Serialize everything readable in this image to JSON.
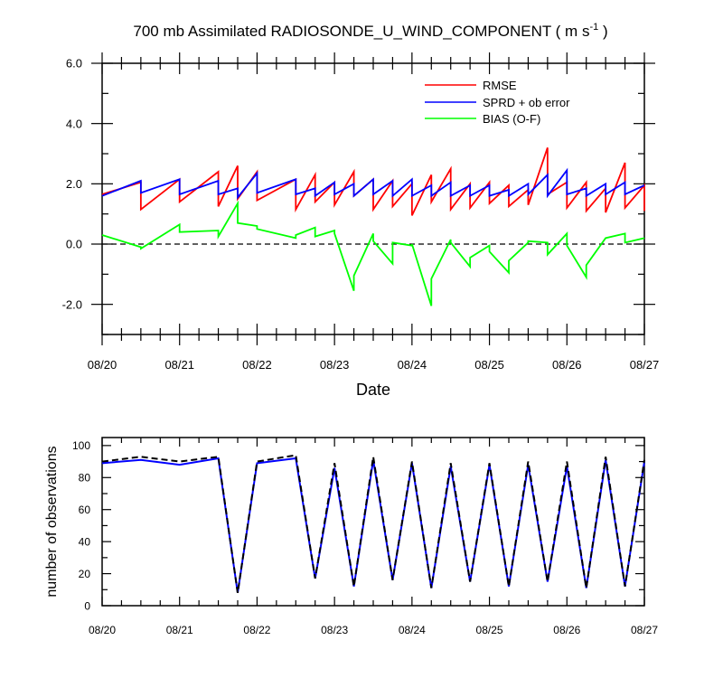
{
  "chart_data": [
    {
      "type": "line",
      "title_main": "700 mb Assimilated RADIOSONDE_U_WIND_COMPONENT ( m s",
      "title_sup": "-1",
      "title_end": " )",
      "xlabel": "Date",
      "ylabel": "",
      "x_unit": "day_fraction_since_08/20",
      "xlim": [
        0,
        7
      ],
      "ylim": [
        -3,
        6
      ],
      "yticks": [
        -2,
        0,
        2,
        4,
        6
      ],
      "ytick_labels": [
        "-2.0",
        "0.0",
        "2.0",
        "4.0",
        "6.0"
      ],
      "xtick_labels": [
        "08/20",
        "08/21",
        "08/22",
        "08/23",
        "08/24",
        "08/25",
        "08/26",
        "08/27"
      ],
      "zero_line": "dashed",
      "legend_position": "top-right",
      "series": [
        {
          "name": "RMSE",
          "color": "#ff0000",
          "x": [
            0,
            0.5,
            0.5,
            1,
            1,
            1.5,
            1.5,
            1.75,
            1.75,
            2,
            2,
            2.5,
            2.5,
            2.75,
            2.75,
            3,
            3,
            3.25,
            3.25,
            3.5,
            3.5,
            3.75,
            3.75,
            4,
            4,
            4.25,
            4.25,
            4.5,
            4.5,
            4.75,
            4.75,
            5,
            5,
            5.25,
            5.25,
            5.5,
            5.5,
            5.75,
            5.75,
            6,
            6,
            6.25,
            6.25,
            6.5,
            6.5,
            6.75,
            6.75,
            7,
            7
          ],
          "y": [
            1.65,
            2.05,
            1.15,
            2.15,
            1.4,
            2.4,
            1.25,
            2.6,
            1.5,
            2.4,
            1.45,
            2.15,
            1.15,
            2.3,
            1.4,
            2.05,
            1.3,
            2.4,
            1.6,
            2.15,
            1.15,
            2.1,
            1.25,
            2.0,
            0.95,
            2.3,
            1.4,
            2.5,
            1.15,
            2.0,
            1.2,
            2.05,
            1.35,
            1.95,
            1.25,
            1.8,
            1.3,
            3.2,
            1.65,
            2.05,
            1.2,
            2.05,
            1.1,
            1.85,
            1.05,
            2.7,
            1.2,
            1.95,
            1.1
          ]
        },
        {
          "name": "SPRD + ob error",
          "color": "#0000ff",
          "x": [
            0,
            0.5,
            0.5,
            1,
            1,
            1.5,
            1.5,
            1.75,
            1.75,
            2,
            2,
            2.5,
            2.5,
            2.75,
            2.75,
            3,
            3,
            3.25,
            3.25,
            3.5,
            3.5,
            3.75,
            3.75,
            4,
            4,
            4.25,
            4.25,
            4.5,
            4.5,
            4.75,
            4.75,
            5,
            5,
            5.25,
            5.25,
            5.5,
            5.5,
            5.75,
            5.75,
            6,
            6,
            6.25,
            6.25,
            6.5,
            6.5,
            6.75,
            6.75,
            7
          ],
          "y": [
            1.6,
            2.1,
            1.7,
            2.15,
            1.65,
            2.1,
            1.65,
            1.85,
            1.55,
            2.35,
            1.7,
            2.15,
            1.65,
            1.85,
            1.6,
            2.05,
            1.65,
            2.0,
            1.6,
            2.15,
            1.65,
            2.1,
            1.6,
            2.15,
            1.6,
            1.95,
            1.6,
            2.05,
            1.6,
            1.95,
            1.6,
            1.95,
            1.6,
            1.8,
            1.6,
            2.0,
            1.65,
            2.3,
            1.6,
            2.45,
            1.65,
            1.85,
            1.6,
            2.0,
            1.65,
            2.05,
            1.65,
            1.95
          ]
        },
        {
          "name": "BIAS (O-F)",
          "color": "#00ff00",
          "x": [
            0,
            0.5,
            0.5,
            1,
            1,
            1.5,
            1.5,
            1.75,
            1.75,
            2,
            2,
            2.5,
            2.5,
            2.75,
            2.75,
            3,
            3,
            3.25,
            3.25,
            3.5,
            3.5,
            3.75,
            3.75,
            4,
            4,
            4.25,
            4.25,
            4.5,
            4.5,
            4.75,
            4.75,
            5,
            5,
            5.25,
            5.25,
            5.5,
            5.5,
            5.75,
            5.75,
            6,
            6,
            6.25,
            6.25,
            6.5,
            6.5,
            6.75,
            6.75,
            7
          ],
          "y": [
            0.3,
            -0.1,
            -0.15,
            0.65,
            0.4,
            0.45,
            0.25,
            1.35,
            0.7,
            0.6,
            0.5,
            0.2,
            0.3,
            0.55,
            0.25,
            0.45,
            0.35,
            -1.55,
            -1.05,
            0.35,
            0.1,
            -0.65,
            0.05,
            -0.05,
            0.0,
            -2.05,
            -1.15,
            0.15,
            0.05,
            -0.75,
            -0.45,
            -0.05,
            -0.25,
            -0.95,
            -0.55,
            0.05,
            0.1,
            0.05,
            -0.35,
            0.35,
            -0.05,
            -1.1,
            -0.7,
            0.2,
            0.2,
            0.35,
            0.05,
            0.2
          ]
        }
      ]
    },
    {
      "type": "line",
      "title": "",
      "xlabel": "",
      "ylabel": "number of observations",
      "x_unit": "day_fraction_since_08/20",
      "xlim": [
        0,
        7
      ],
      "ylim": [
        0,
        105
      ],
      "yticks": [
        0,
        20,
        40,
        60,
        80,
        100
      ],
      "ytick_labels": [
        "0",
        "20",
        "40",
        "60",
        "80",
        "100"
      ],
      "xtick_labels": [
        "08/20",
        "08/21",
        "08/22",
        "08/23",
        "08/24",
        "08/25",
        "08/26",
        "08/27"
      ],
      "series": [
        {
          "color": "#0000ff",
          "style": "solid",
          "x": [
            0,
            0.5,
            1,
            1.5,
            1.75,
            2,
            2.5,
            2.75,
            3,
            3.25,
            3.5,
            3.75,
            4,
            4.25,
            4.5,
            4.75,
            5,
            5.25,
            5.5,
            5.75,
            6,
            6.25,
            6.5,
            6.75,
            7
          ],
          "y": [
            89,
            91,
            88,
            92,
            8,
            89,
            92,
            17,
            86,
            12,
            91,
            16,
            89,
            11,
            87,
            15,
            88,
            12,
            88,
            15,
            87,
            11,
            91,
            12,
            90
          ]
        },
        {
          "color": "#000000",
          "style": "dashed",
          "x": [
            0,
            0.5,
            1,
            1.5,
            1.75,
            2,
            2.5,
            2.75,
            3,
            3.25,
            3.5,
            3.75,
            4,
            4.25,
            4.5,
            4.75,
            5,
            5.25,
            5.5,
            5.75,
            6,
            6.25,
            6.5,
            6.75,
            7
          ],
          "y": [
            90,
            93,
            90,
            93,
            8,
            90,
            94,
            17,
            89,
            12,
            93,
            16,
            90,
            11,
            89,
            15,
            89,
            12,
            90,
            15,
            90,
            11,
            93,
            12,
            91
          ]
        }
      ]
    }
  ]
}
